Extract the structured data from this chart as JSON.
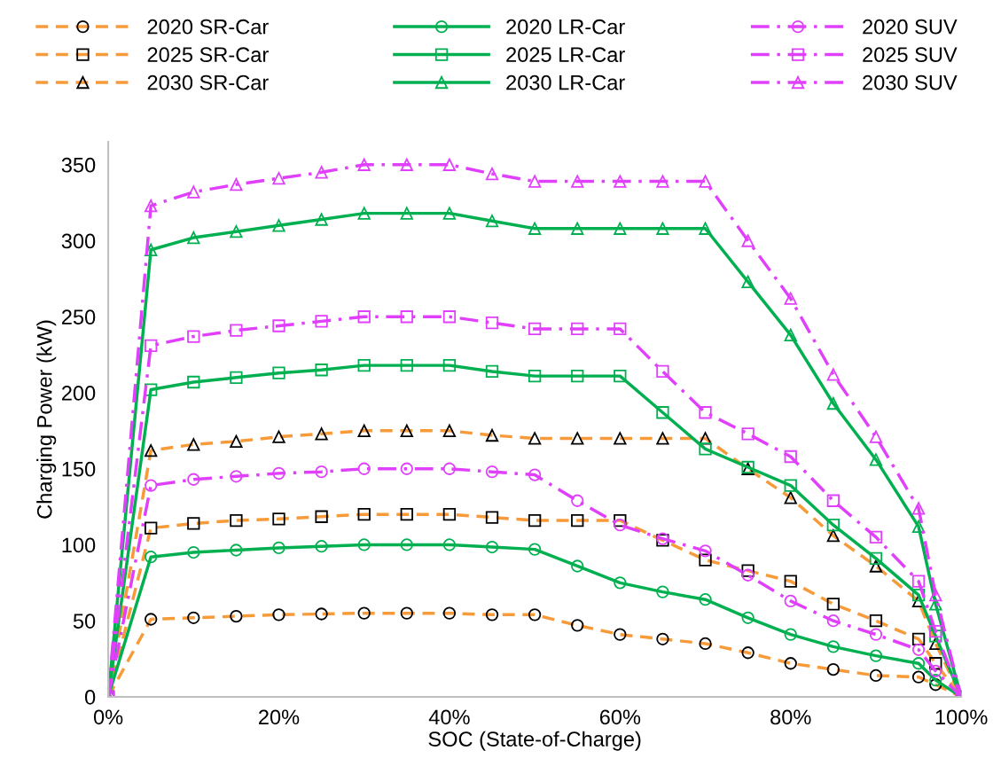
{
  "chart_data": {
    "type": "line",
    "xlabel": "SOC (State-of-Charge)",
    "ylabel": "Charging Power (kW)",
    "x": [
      0,
      5,
      10,
      15,
      20,
      25,
      30,
      35,
      40,
      45,
      50,
      55,
      60,
      65,
      70,
      75,
      80,
      85,
      90,
      95,
      97,
      100
    ],
    "xlim": [
      0,
      100
    ],
    "xticks": [
      {
        "value": 0,
        "label": "0%"
      },
      {
        "value": 20,
        "label": "20%"
      },
      {
        "value": 40,
        "label": "40%"
      },
      {
        "value": 60,
        "label": "60%"
      },
      {
        "value": 80,
        "label": "80%"
      },
      {
        "value": 100,
        "label": "100%"
      }
    ],
    "ylim": [
      0,
      365
    ],
    "yticks": [
      0,
      50,
      100,
      150,
      200,
      250,
      300,
      350
    ],
    "grid": false,
    "legend": "top",
    "series": [
      {
        "name": "2020 SR-Car",
        "color": "#f79a3a",
        "marker": "circle",
        "line_style": "dashed",
        "values": [
          0,
          51,
          52,
          53,
          54,
          54.5,
          55,
          55,
          55,
          54,
          54,
          47,
          41,
          38,
          35,
          29,
          22,
          18,
          14,
          13,
          8,
          0
        ]
      },
      {
        "name": "2025 SR-Car",
        "color": "#f79a3a",
        "marker": "square",
        "line_style": "dashed",
        "values": [
          0,
          111,
          114,
          116,
          117,
          118.5,
          120,
          120,
          120,
          118,
          116,
          116,
          116,
          103,
          90,
          83,
          76,
          61,
          50,
          38,
          22,
          0
        ]
      },
      {
        "name": "2030 SR-Car",
        "color": "#f79a3a",
        "marker": "triangle",
        "line_style": "dashed",
        "values": [
          0,
          162,
          166,
          168,
          171,
          173,
          175,
          175,
          175,
          172,
          170,
          170,
          170,
          170,
          170,
          150,
          131,
          106,
          86,
          63,
          35,
          0
        ]
      },
      {
        "name": "2020 LR-Car",
        "color": "#00b050",
        "marker": "circle",
        "line_style": "solid",
        "values": [
          0,
          92,
          95,
          96.5,
          98,
          99,
          100,
          100,
          100,
          98.5,
          97,
          86,
          75,
          69,
          64,
          52,
          41,
          33,
          27,
          22,
          11,
          0
        ]
      },
      {
        "name": "2025 LR-Car",
        "color": "#00b050",
        "marker": "square",
        "line_style": "solid",
        "values": [
          0,
          202,
          207,
          210,
          213,
          215,
          218,
          218,
          218,
          214,
          211,
          211,
          211,
          187,
          163,
          151,
          139,
          113,
          91,
          67,
          40,
          0
        ]
      },
      {
        "name": "2030 LR-Car",
        "color": "#00b050",
        "marker": "triangle",
        "line_style": "solid",
        "values": [
          0,
          294,
          302,
          306,
          310,
          314,
          318,
          318,
          318,
          313,
          308,
          308,
          308,
          308,
          308,
          273,
          238,
          193,
          156,
          112,
          61,
          0
        ]
      },
      {
        "name": "2020 SUV",
        "color": "#e040fb",
        "marker": "circle",
        "line_style": "dashdot",
        "values": [
          0,
          139,
          143,
          145,
          147,
          148,
          150,
          150,
          150,
          148,
          146,
          129,
          113,
          104,
          96,
          80,
          63,
          50,
          41,
          31,
          17,
          0
        ]
      },
      {
        "name": "2025 SUV",
        "color": "#e040fb",
        "marker": "square",
        "line_style": "dashdot",
        "values": [
          0,
          231,
          237,
          241,
          244,
          247,
          250,
          250,
          250,
          246,
          242,
          242,
          242,
          214,
          187,
          173,
          158,
          129,
          105,
          76,
          43,
          0
        ]
      },
      {
        "name": "2030 SUV",
        "color": "#e040fb",
        "marker": "triangle",
        "line_style": "dashdot",
        "values": [
          0,
          323,
          332,
          337,
          341,
          345,
          350,
          350,
          350,
          344,
          339,
          339,
          339,
          339,
          339,
          300,
          262,
          212,
          171,
          124,
          67,
          0
        ]
      }
    ]
  }
}
